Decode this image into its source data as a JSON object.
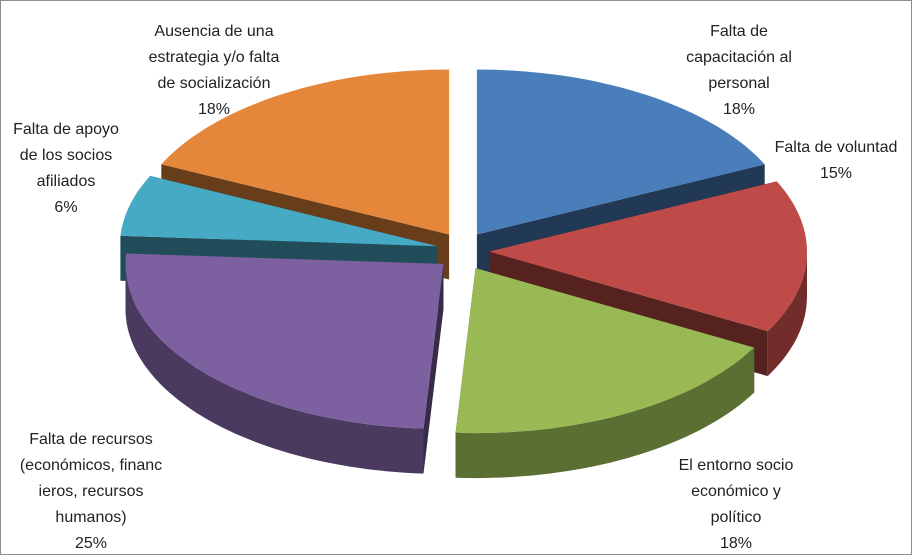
{
  "chart_data": {
    "type": "pie3d",
    "categories": [
      "Falta de\ncapacitación al\npersonal",
      "Falta de voluntad",
      "El entorno socio\neconómico y\npolítico",
      "Falta de recursos\n(económicos, financ\nieros, recursos\nhumanos)",
      "Falta de apoyo\nde los socios\nafiliados",
      "Ausencia de una\nestrategia y/o falta\nde socialización"
    ],
    "values": [
      18,
      15,
      18,
      25,
      6,
      18
    ],
    "value_labels": [
      "18%",
      "15%",
      "18%",
      "25%",
      "6%",
      "18%"
    ],
    "colors": [
      "#4a7ebb",
      "#be4b48",
      "#98b954",
      "#7d60a0",
      "#46aac5",
      "#e5873a"
    ]
  }
}
